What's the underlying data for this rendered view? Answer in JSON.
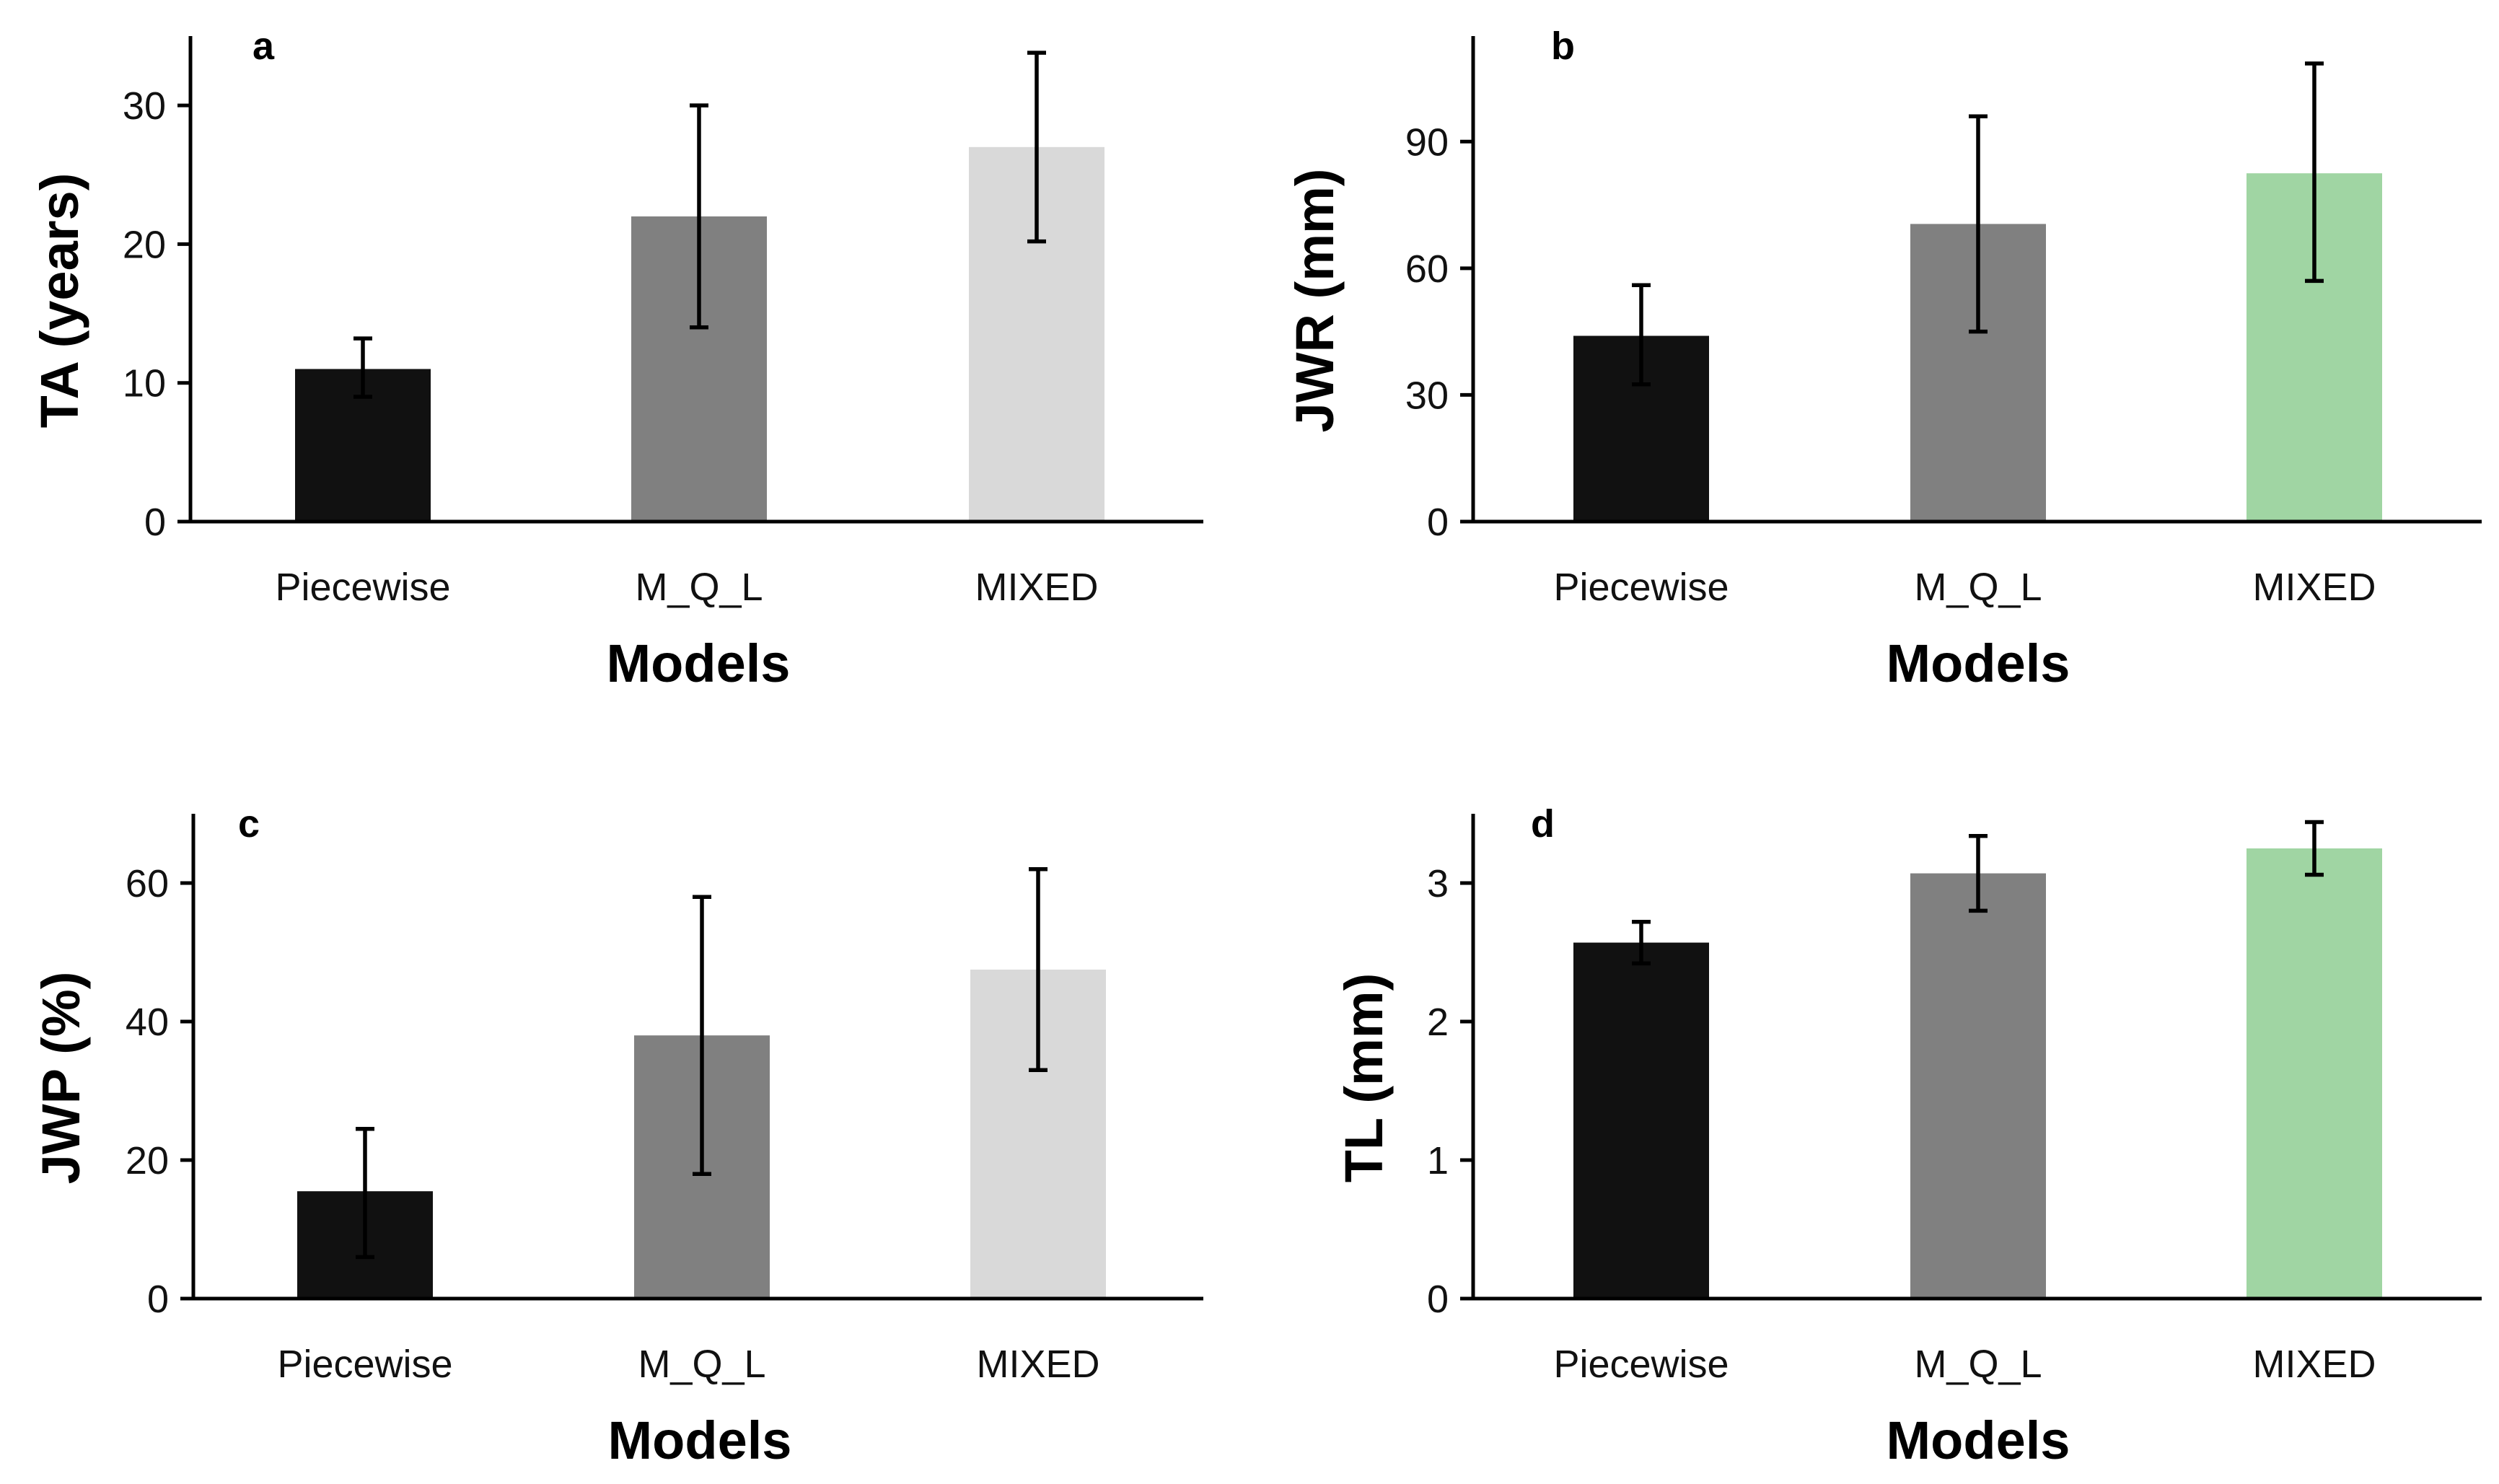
{
  "chart_data": [
    {
      "type": "bar",
      "panel_label": "a",
      "categories": [
        "Piecewise",
        "M_Q_L",
        "MIXED"
      ],
      "values": [
        11,
        22,
        27
      ],
      "error_low": [
        9,
        14,
        20.2
      ],
      "error_high": [
        13.2,
        30,
        33.8
      ],
      "bar_colors": [
        "#111111",
        "#808080",
        "#d9d9d9"
      ],
      "xlabel": "Models",
      "ylabel": "TA (years)",
      "ylim": [
        0,
        35
      ],
      "yticks": [
        0,
        10,
        20,
        30
      ]
    },
    {
      "type": "bar",
      "panel_label": "b",
      "categories": [
        "Piecewise",
        "M_Q_L",
        "MIXED"
      ],
      "values": [
        44,
        70.5,
        82.5
      ],
      "error_low": [
        32.5,
        45,
        57
      ],
      "error_high": [
        56,
        96,
        108.5
      ],
      "bar_colors": [
        "#111111",
        "#808080",
        "#a0d5a3"
      ],
      "xlabel": "Models",
      "ylabel": "JWR (mm)",
      "ylim": [
        0,
        115
      ],
      "yticks": [
        0,
        30,
        60,
        90
      ]
    },
    {
      "type": "bar",
      "panel_label": "c",
      "categories": [
        "Piecewise",
        "M_Q_L",
        "MIXED"
      ],
      "values": [
        15.5,
        38,
        47.5
      ],
      "error_low": [
        6,
        18,
        33
      ],
      "error_high": [
        24.5,
        58,
        62
      ],
      "bar_colors": [
        "#111111",
        "#808080",
        "#d9d9d9"
      ],
      "xlabel": "Models",
      "ylabel": "JWP (%)",
      "ylim": [
        0,
        70
      ],
      "yticks": [
        0,
        20,
        40,
        60
      ]
    },
    {
      "type": "bar",
      "panel_label": "d",
      "categories": [
        "Piecewise",
        "M_Q_L",
        "MIXED"
      ],
      "values": [
        2.57,
        3.07,
        3.25
      ],
      "error_low": [
        2.42,
        2.8,
        3.06
      ],
      "error_high": [
        2.72,
        3.34,
        3.44
      ],
      "bar_colors": [
        "#111111",
        "#808080",
        "#a0d5a3"
      ],
      "xlabel": "Models",
      "ylabel": "TL (mm)",
      "ylim": [
        0,
        3.5
      ],
      "yticks": [
        0,
        1,
        2,
        3
      ]
    }
  ]
}
